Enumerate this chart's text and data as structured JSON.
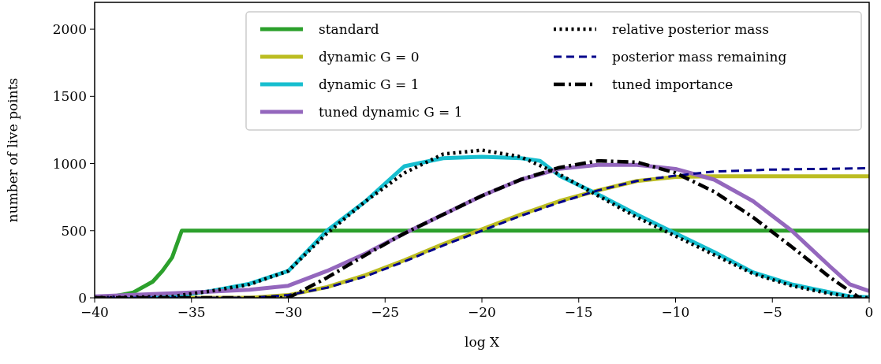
{
  "chart_data": {
    "type": "line",
    "xlabel": "log X",
    "ylabel": "number of live points",
    "xlim": [
      -40,
      0
    ],
    "ylim": [
      0,
      2200
    ],
    "xticks": [
      {
        "value": -40,
        "label": "−40"
      },
      {
        "value": -35,
        "label": "−35"
      },
      {
        "value": -30,
        "label": "−30"
      },
      {
        "value": -25,
        "label": "−25"
      },
      {
        "value": -20,
        "label": "−20"
      },
      {
        "value": -15,
        "label": "−15"
      },
      {
        "value": -10,
        "label": "−10"
      },
      {
        "value": -5,
        "label": "−5"
      },
      0
    ],
    "yticks": [
      0,
      500,
      1000,
      1500,
      2000
    ],
    "legend": "top right",
    "grid": false,
    "series": [
      {
        "name": "standard",
        "color": "#2ca02c",
        "line_style": "solid",
        "x": [
          -40,
          -39,
          -38,
          -37,
          -36.5,
          -36,
          -35.5,
          0
        ],
        "values": [
          0,
          10,
          40,
          120,
          200,
          300,
          500,
          500
        ]
      },
      {
        "name": "dynamic G = 0",
        "color": "#bcbd22",
        "line_style": "solid",
        "x": [
          -40,
          -32,
          -30,
          -28,
          -26,
          -24,
          -22,
          -20,
          -18,
          -16,
          -14,
          -12,
          -10,
          -8,
          0
        ],
        "values": [
          0,
          0,
          20,
          80,
          170,
          280,
          400,
          510,
          620,
          720,
          800,
          870,
          900,
          905,
          905
        ]
      },
      {
        "name": "dynamic G = 1",
        "color": "#17becf",
        "line_style": "solid",
        "x": [
          -40,
          -36,
          -35,
          -34,
          -32,
          -30,
          -28,
          -26,
          -24,
          -22,
          -20,
          -18,
          -17,
          -16,
          -14,
          -12,
          -10,
          -8,
          -6,
          -4,
          -2,
          -1,
          0
        ],
        "values": [
          0,
          10,
          30,
          50,
          105,
          200,
          500,
          720,
          980,
          1040,
          1050,
          1040,
          1020,
          910,
          770,
          620,
          480,
          340,
          190,
          100,
          40,
          10,
          5
        ]
      },
      {
        "name": "tuned dynamic G = 1",
        "color": "#9467bd",
        "line_style": "solid",
        "x": [
          -40,
          -35,
          -32,
          -30,
          -28,
          -26,
          -24,
          -22,
          -20,
          -18,
          -16,
          -14,
          -12,
          -10,
          -8,
          -6,
          -4,
          -2,
          -1,
          0
        ],
        "values": [
          10,
          40,
          60,
          90,
          200,
          330,
          480,
          620,
          760,
          880,
          960,
          990,
          990,
          960,
          880,
          720,
          500,
          230,
          100,
          50
        ]
      },
      {
        "name": "relative posterior mass",
        "color": "#000000",
        "line_style": "dotted",
        "x": [
          -40,
          -36,
          -34,
          -32,
          -30,
          -28,
          -26,
          -24,
          -22,
          -20,
          -18,
          -16,
          -14,
          -12,
          -10,
          -8,
          -6,
          -4,
          -2,
          -1,
          0
        ],
        "values": [
          0,
          10,
          50,
          100,
          200,
          480,
          720,
          930,
          1070,
          1100,
          1050,
          920,
          760,
          600,
          460,
          320,
          180,
          90,
          30,
          10,
          0
        ]
      },
      {
        "name": "posterior mass remaining",
        "color": "#00008b",
        "line_style": "dashed",
        "x": [
          -40,
          -32,
          -30,
          -28,
          -26,
          -24,
          -22,
          -20,
          -18,
          -16,
          -14,
          -12,
          -10,
          -8,
          -5,
          0
        ],
        "values": [
          0,
          0,
          20,
          75,
          160,
          270,
          390,
          500,
          610,
          710,
          800,
          870,
          910,
          940,
          955,
          965
        ]
      },
      {
        "name": "tuned importance",
        "color": "#000000",
        "line_style": "dashdot",
        "x": [
          -40,
          -30,
          -28,
          -26,
          -24,
          -22,
          -20,
          -18,
          -16,
          -14,
          -12,
          -10,
          -8,
          -6,
          -4,
          -2,
          -0.5
        ],
        "values": [
          0,
          0,
          150,
          320,
          480,
          620,
          760,
          880,
          970,
          1020,
          1010,
          930,
          790,
          600,
          380,
          150,
          0
        ]
      }
    ]
  }
}
